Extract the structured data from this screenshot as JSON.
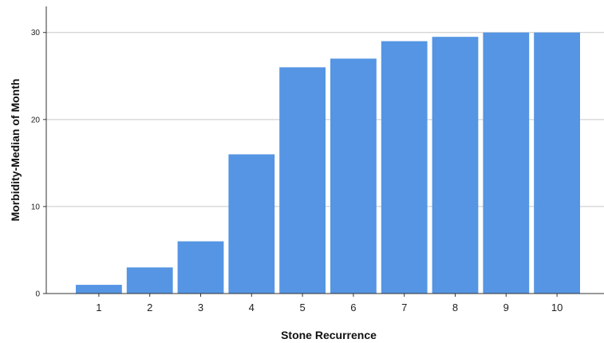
{
  "chart_data": {
    "type": "bar",
    "title": "",
    "xlabel": "Stone Recurrence",
    "ylabel": "Morbidity-Median of Month",
    "categories": [
      "1",
      "2",
      "3",
      "4",
      "5",
      "6",
      "7",
      "8",
      "9",
      "10"
    ],
    "values": [
      1,
      3,
      6,
      16,
      26,
      27,
      29,
      29.5,
      30,
      30
    ],
    "yticks": [
      "0",
      "10",
      "20",
      "30"
    ],
    "ylim": [
      0,
      33
    ],
    "grid": "horizontal",
    "bar_color": "#5595e3",
    "grid_color": "#c8c8c8"
  }
}
